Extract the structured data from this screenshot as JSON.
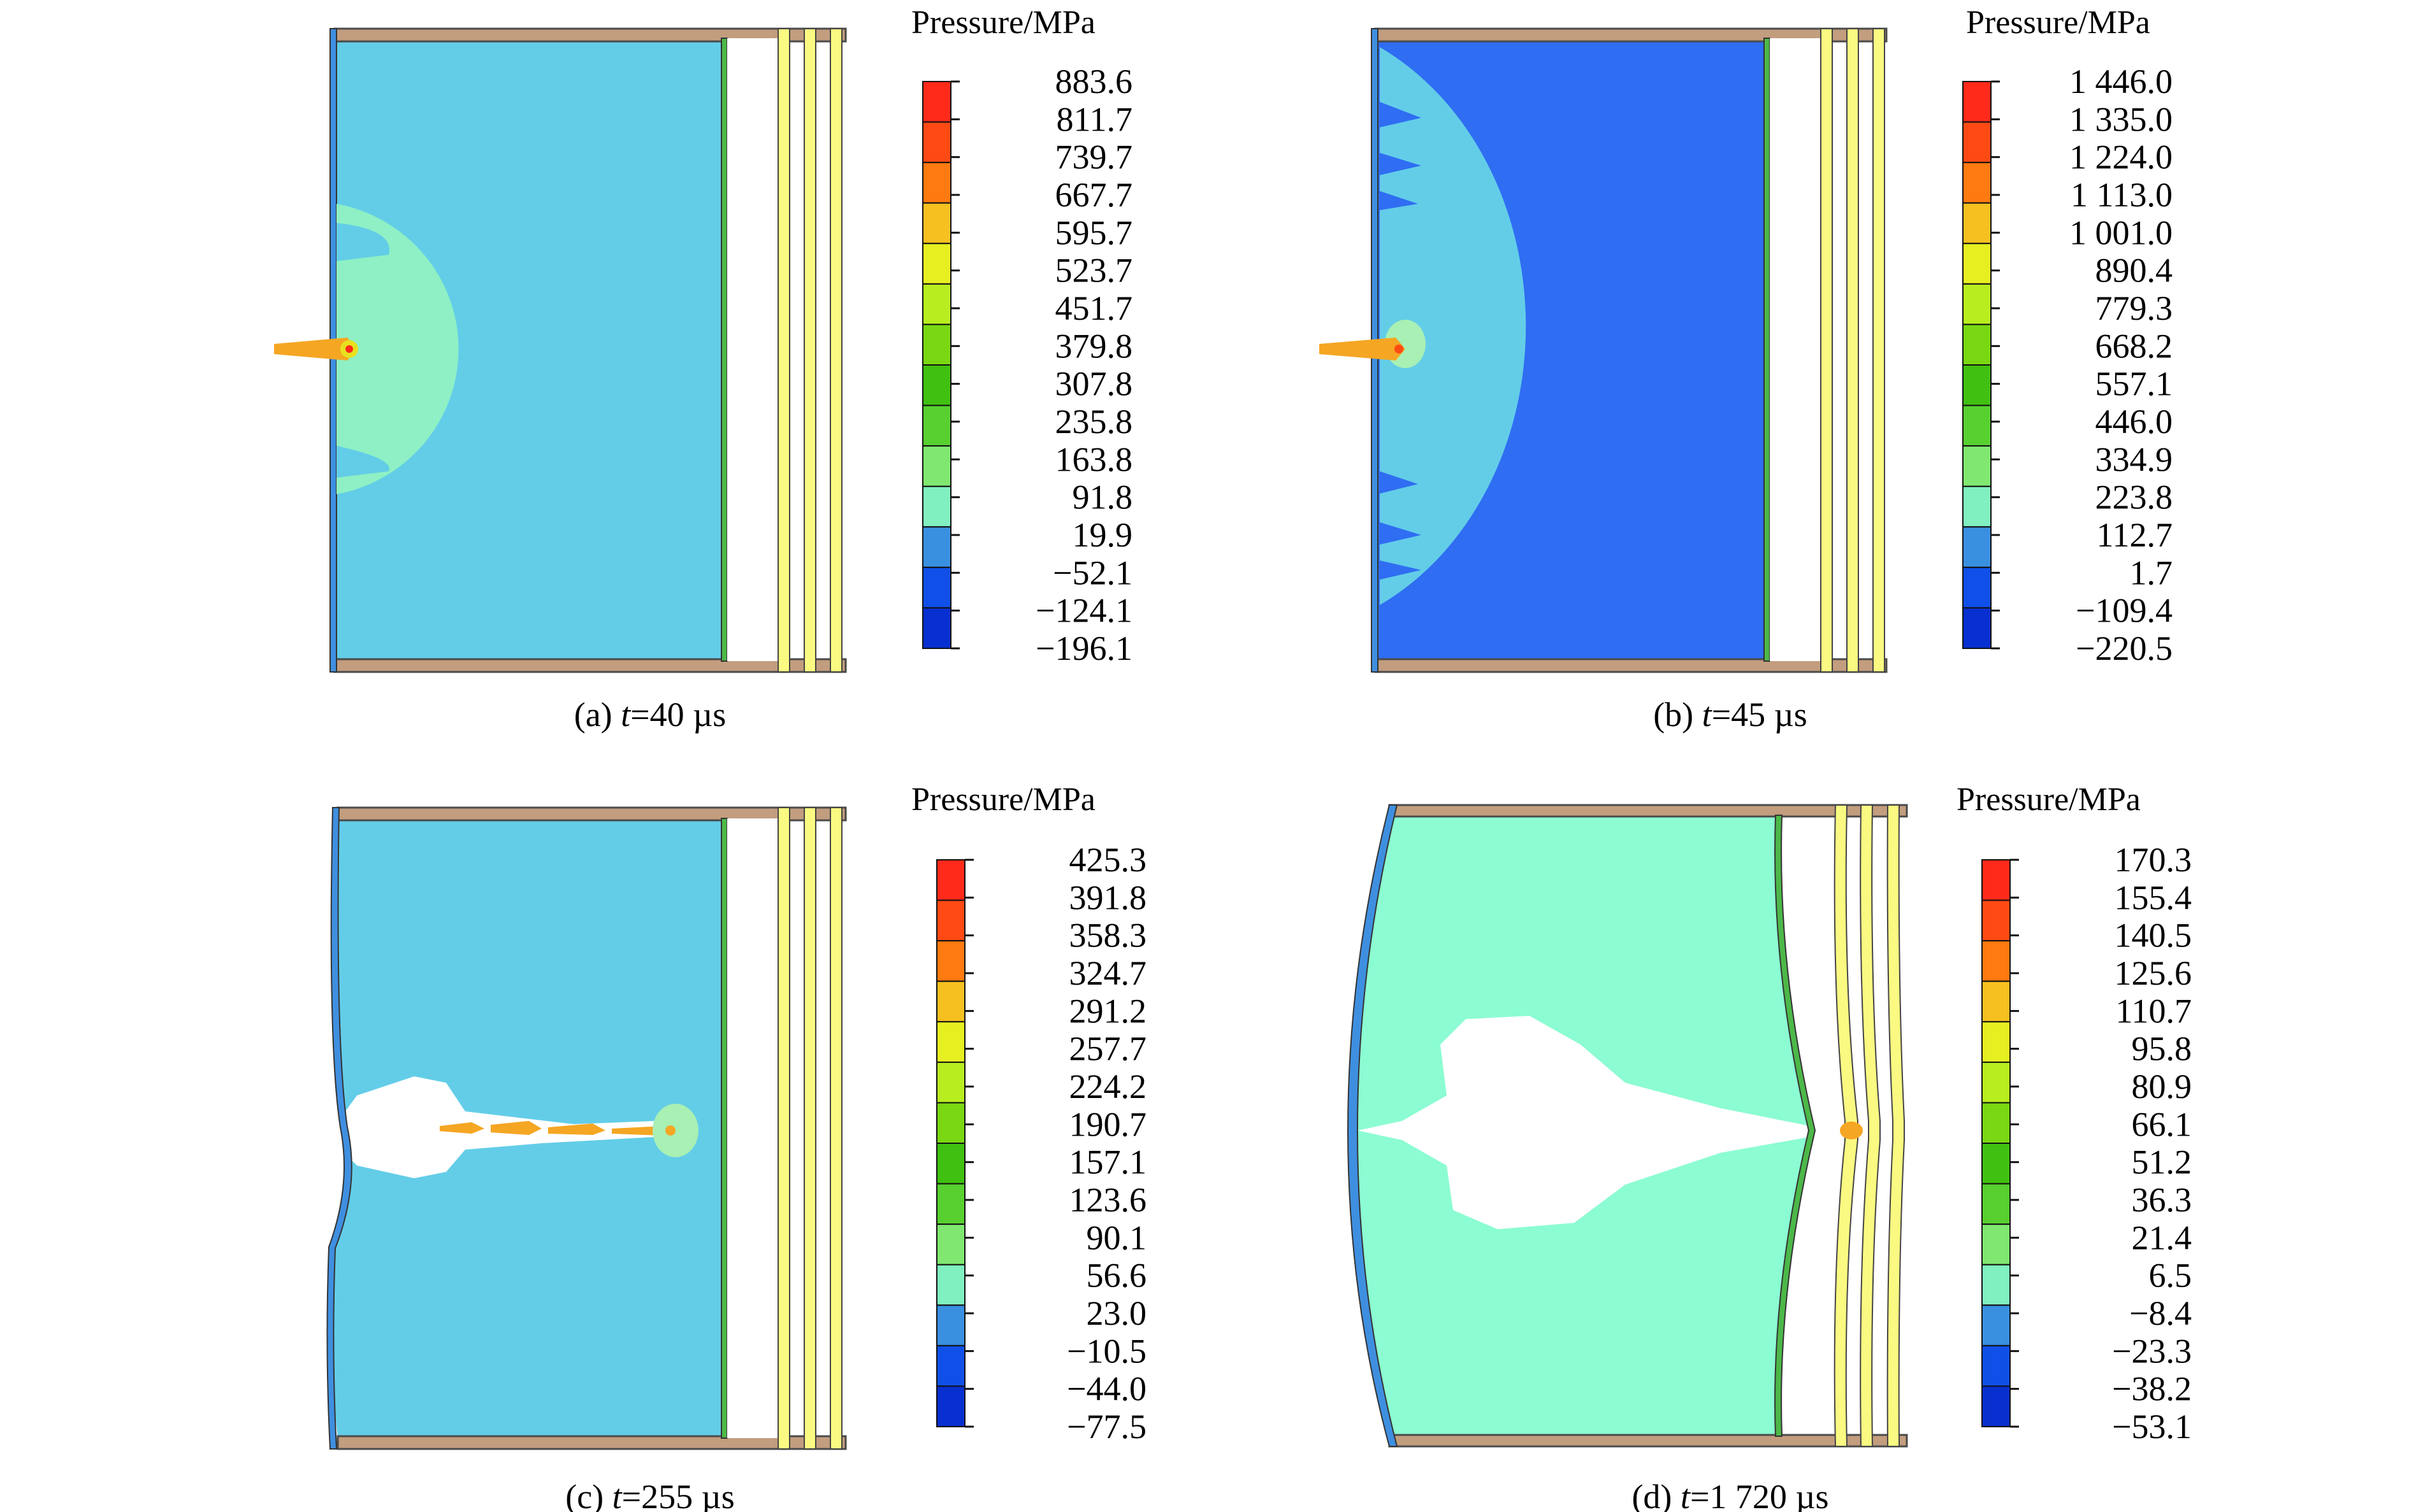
{
  "figure": {
    "legend_title": "Pressure/MPa",
    "colors": {
      "water_mid": "#63CDE8",
      "water_low": "#2F6DF2",
      "water_cyan": "#8CFCD2",
      "plate": "#C29D7E",
      "plate_stroke": "#4a4a4a",
      "panel_yellow": "#FAFA82",
      "front_wall": "#3F8FE0",
      "back_wall": "#4CB848",
      "jet": "#F5A623",
      "bubble": "#A8F0B4",
      "cavity": "#ffffff"
    },
    "scale_colors": [
      "#FF2A1A",
      "#FF4A14",
      "#FF7A10",
      "#F5C020",
      "#E6F020",
      "#B8EE20",
      "#7AD812",
      "#40C010",
      "#58D030",
      "#80E870",
      "#80F0C0",
      "#3A90E0",
      "#1050E8",
      "#0830D0"
    ],
    "panels": [
      {
        "id": "a",
        "caption_prefix": "(a) ",
        "caption_var": "t",
        "caption_rest": "=40 µs",
        "legend_values": [
          "883.6",
          "811.7",
          "739.7",
          "667.7",
          "595.7",
          "523.7",
          "451.7",
          "379.8",
          "307.8",
          "235.8",
          "163.8",
          "91.8",
          "19.9",
          "−52.1",
          "−124.1",
          "−196.1"
        ]
      },
      {
        "id": "b",
        "caption_prefix": "(b) ",
        "caption_var": "t",
        "caption_rest": "=45 µs",
        "legend_values": [
          "1 446.0",
          "1 335.0",
          "1 224.0",
          "1 113.0",
          "1 001.0",
          "890.4",
          "779.3",
          "668.2",
          "557.1",
          "446.0",
          "334.9",
          "223.8",
          "112.7",
          "1.7",
          "−109.4",
          "−220.5"
        ]
      },
      {
        "id": "c",
        "caption_prefix": "(c) ",
        "caption_var": "t",
        "caption_rest": "=255 µs",
        "legend_values": [
          "425.3",
          "391.8",
          "358.3",
          "324.7",
          "291.2",
          "257.7",
          "224.2",
          "190.7",
          "157.1",
          "123.6",
          "90.1",
          "56.6",
          "23.0",
          "−10.5",
          "−44.0",
          "−77.5"
        ]
      },
      {
        "id": "d",
        "caption_prefix": "(d) ",
        "caption_var": "t",
        "caption_rest": "=1 720 µs",
        "legend_values": [
          "170.3",
          "155.4",
          "140.5",
          "125.6",
          "110.7",
          "95.8",
          "80.9",
          "66.1",
          "51.2",
          "36.3",
          "21.4",
          "6.5",
          "−8.4",
          "−23.3",
          "−38.2",
          "−53.1"
        ]
      }
    ]
  }
}
